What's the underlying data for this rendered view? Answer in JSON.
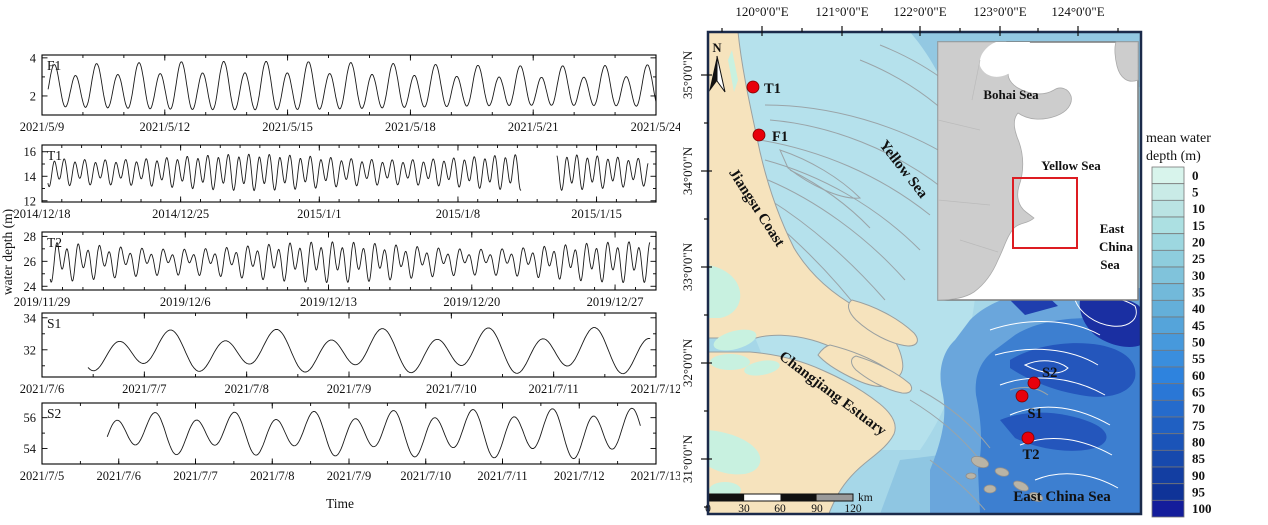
{
  "chart_data": [
    {
      "type": "line",
      "station": "F1",
      "x_tick_labels": [
        "2021/5/9",
        "2021/5/12",
        "2021/5/15",
        "2021/5/18",
        "2021/5/21",
        "2021/5/24"
      ],
      "x_tick_positions": [
        0,
        3,
        6,
        9,
        12,
        15
      ],
      "x_minor_step": 1,
      "xlim": [
        0,
        15
      ],
      "y_ticks": [
        2,
        4
      ],
      "y_minor_step": 1,
      "ylim": [
        1.0,
        4.15
      ],
      "segments": [
        [
          0.15,
          15.0
        ]
      ],
      "signal": {
        "period_days": 0.5175,
        "mean": 2.4,
        "amplitude": 1.0,
        "spring_neap_mod": 0.12,
        "spring_day": 5,
        "diurnal_amp": 0.3,
        "diurnal_phase": 0,
        "phase": 0.3
      }
    },
    {
      "type": "line",
      "station": "T1",
      "x_tick_labels": [
        "2014/12/18",
        "2014/12/25",
        "2015/1/1",
        "2015/1/8",
        "2015/1/15"
      ],
      "x_tick_positions": [
        0,
        7,
        14,
        21,
        28
      ],
      "x_minor_step": 1,
      "xlim": [
        0,
        31
      ],
      "y_ticks": [
        12,
        14,
        16
      ],
      "y_minor_step": 1,
      "ylim": [
        11.9,
        16.55
      ],
      "segments": [
        [
          0.3,
          24.2
        ],
        [
          26.0,
          30.6
        ]
      ],
      "signal": {
        "period_days": 0.5175,
        "mean": 14.4,
        "amplitude": 1.05,
        "spring_neap_mod": 0.22,
        "spring_day": 10.5,
        "diurnal_amp": 0.3,
        "diurnal_phase": 1.2,
        "phase": 0.1
      }
    },
    {
      "type": "line",
      "station": "T2",
      "x_tick_labels": [
        "2019/11/29",
        "2019/12/6",
        "2019/12/13",
        "2019/12/20",
        "2019/12/27"
      ],
      "x_tick_positions": [
        0,
        7,
        14,
        21,
        28
      ],
      "x_minor_step": 1,
      "xlim": [
        0,
        30
      ],
      "y_ticks": [
        24,
        26,
        28
      ],
      "y_minor_step": 1,
      "ylim": [
        23.7,
        28.35
      ],
      "segments": [
        [
          0.4,
          29.7
        ]
      ],
      "signal": {
        "period_days": 0.5175,
        "mean": 26.05,
        "amplitude": 0.95,
        "spring_neap_mod": 0.32,
        "spring_day": 14,
        "diurnal_amp": 0.55,
        "diurnal_phase": 2.0,
        "phase": 0.2
      }
    },
    {
      "type": "line",
      "station": "S1",
      "x_tick_labels": [
        "2021/7/6",
        "2021/7/7",
        "2021/7/8",
        "2021/7/9",
        "2021/7/10",
        "2021/7/11",
        "2021/7/12"
      ],
      "x_tick_positions": [
        0,
        1,
        2,
        3,
        4,
        5,
        6
      ],
      "x_minor_step": 0.5,
      "xlim": [
        0,
        6
      ],
      "y_ticks": [
        32,
        34
      ],
      "y_minor_step": 1,
      "ylim": [
        30.3,
        34.3
      ],
      "segments": [
        [
          0.45,
          5.95
        ]
      ],
      "signal": {
        "period_days": 0.5175,
        "mean": 31.9,
        "amplitude": 1.05,
        "spring_neap_mod": 0.1,
        "spring_day": 6.5,
        "diurnal_amp": 0.42,
        "diurnal_phase": 0.6,
        "phase": 0.23
      }
    },
    {
      "type": "line",
      "station": "S2",
      "x_tick_labels": [
        "2021/7/5",
        "2021/7/6",
        "2021/7/7",
        "2021/7/8",
        "2021/7/9",
        "2021/7/10",
        "2021/7/11",
        "2021/7/12",
        "2021/7/13"
      ],
      "x_tick_positions": [
        0,
        1,
        2,
        3,
        4,
        5,
        6,
        7,
        8
      ],
      "x_minor_step": 0.5,
      "xlim": [
        0,
        8
      ],
      "y_ticks": [
        54,
        56
      ],
      "y_minor_step": 1,
      "ylim": [
        53.0,
        56.95
      ],
      "segments": [
        [
          0.85,
          7.8
        ]
      ],
      "signal": {
        "period_days": 0.5175,
        "mean": 55.0,
        "amplitude": 1.22,
        "spring_neap_mod": 0.12,
        "spring_day": 8.5,
        "diurnal_amp": 0.4,
        "diurnal_phase": 0.9,
        "phase": 0.45
      }
    }
  ],
  "left_panel": {
    "y_axis_label": "water depth (m)",
    "x_axis_label": "Time"
  },
  "map": {
    "lon_labels": [
      "120°0'0\"E",
      "121°0'0\"E",
      "122°0'0\"E",
      "123°0'0\"E",
      "124°0'0\"E"
    ],
    "lat_labels": [
      "35°0'0\"N",
      "34°0'0\"N",
      "33°0'0\"N",
      "32°0'0\"N",
      "31°0'0\"N"
    ],
    "north_arrow_label": "N",
    "place_labels": {
      "jiangsu_coast": "Jiangsu Coast",
      "yellow_sea": "Yellow Sea",
      "changjiang_estuary": "Changjiang Estuary",
      "east_china_sea": "East China Sea"
    },
    "stations": [
      {
        "id": "T1",
        "label": "T1"
      },
      {
        "id": "F1",
        "label": "F1"
      },
      {
        "id": "S2",
        "label": "S2"
      },
      {
        "id": "S1",
        "label": "S1"
      },
      {
        "id": "T2",
        "label": "T2"
      }
    ],
    "scalebar": {
      "tick_labels": [
        "0",
        "30",
        "60",
        "90",
        "120"
      ],
      "unit": "km"
    },
    "inset": {
      "bohai_sea": "Bohai Sea",
      "yellow_sea": "Yellow Sea",
      "east_china_sea_lines": [
        "East",
        "China",
        "Sea"
      ]
    },
    "colorbar": {
      "title_lines": [
        "mean water",
        "depth (m)"
      ],
      "values": [
        "0",
        "5",
        "10",
        "15",
        "20",
        "25",
        "30",
        "35",
        "40",
        "45",
        "50",
        "55",
        "60",
        "65",
        "70",
        "75",
        "80",
        "85",
        "90",
        "95",
        "100"
      ],
      "colors": [
        "#d8f4ec",
        "#c9ebe7",
        "#bae3e3",
        "#ace0e2",
        "#9dd7e0",
        "#8ecddd",
        "#80c3db",
        "#72b9da",
        "#64afd9",
        "#55a4da",
        "#4799dc",
        "#3a8edd",
        "#2e83de",
        "#2a77d6",
        "#256bcc",
        "#2060c2",
        "#1b54b8",
        "#1749ad",
        "#133ea2",
        "#0f3398",
        "#141d9b"
      ]
    },
    "colors": {
      "land": "#f6e3bd",
      "shallow_water": "#a6d7e8",
      "ridge_water": "#b5e1ec",
      "tidal_flat": "#c8f1e0",
      "deep_water_1": "#6aa6dc",
      "deep_water_2": "#3d7fd0",
      "deep_water_3": "#2456bc",
      "deep_water_4": "#1a2fa2",
      "station_marker": "#e8000b",
      "inset_land": "#cdcdcd",
      "study_box": "#dd1c22"
    }
  }
}
